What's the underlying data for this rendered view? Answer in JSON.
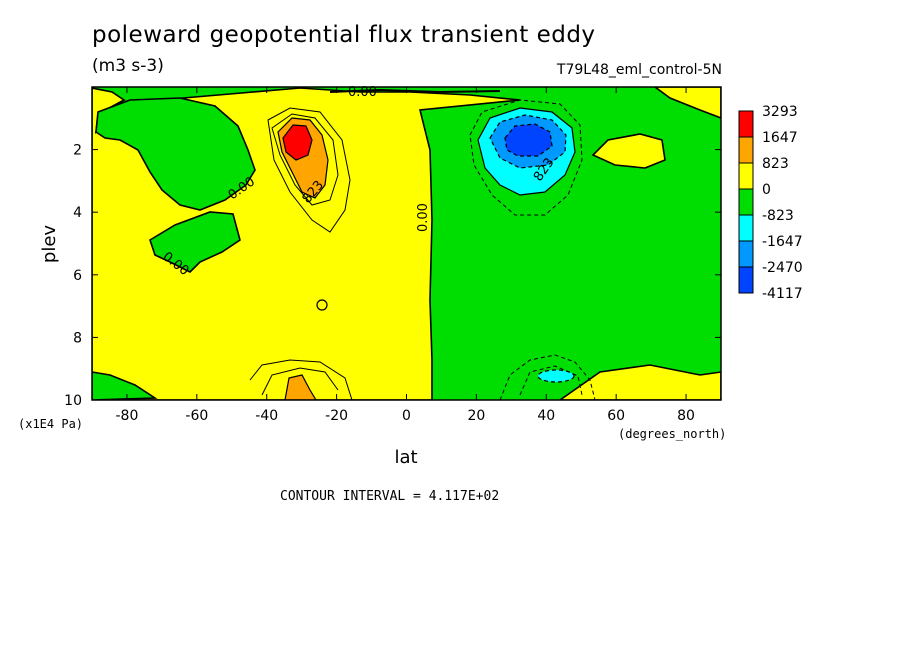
{
  "chart_data": {
    "type": "contour",
    "title": "poleward geopotential flux transient eddy",
    "units": "(m3 s-3)",
    "experiment": "T79L48_eml_control-5N",
    "xlabel": "lat",
    "xunits": "(degrees_north)",
    "ylabel": "plev",
    "yunits": "(x1E4 Pa)",
    "xlim": [
      -90,
      90
    ],
    "ylim": [
      10,
      0
    ],
    "xticks": [
      "-80",
      "-60",
      "-40",
      "-20",
      "0",
      "20",
      "40",
      "60",
      "80"
    ],
    "yticks": [
      "2",
      "4",
      "6",
      "8",
      "10"
    ],
    "legend": {
      "levels": [
        "3293",
        "1647",
        "823",
        "0",
        "-823",
        "-1647",
        "-2470",
        "-4117"
      ],
      "colors": [
        "#ff0000",
        "#ffa500",
        "#ffff00",
        "#00dd00",
        "#00ffff",
        "#0099ff",
        "#0044ff"
      ]
    },
    "contour_labels": [
      "0.00",
      "0.00",
      "0.00",
      "0.00",
      "823",
      "823"
    ],
    "contour_interval": "CONTOUR INTERVAL = 4.117E+02",
    "features": [
      {
        "name": "positive-maximum",
        "lat": -30,
        "plev": 1.7,
        "value": "3293"
      },
      {
        "name": "negative-minimum",
        "lat": 35,
        "plev": 1.9,
        "value": "-4117"
      }
    ]
  }
}
